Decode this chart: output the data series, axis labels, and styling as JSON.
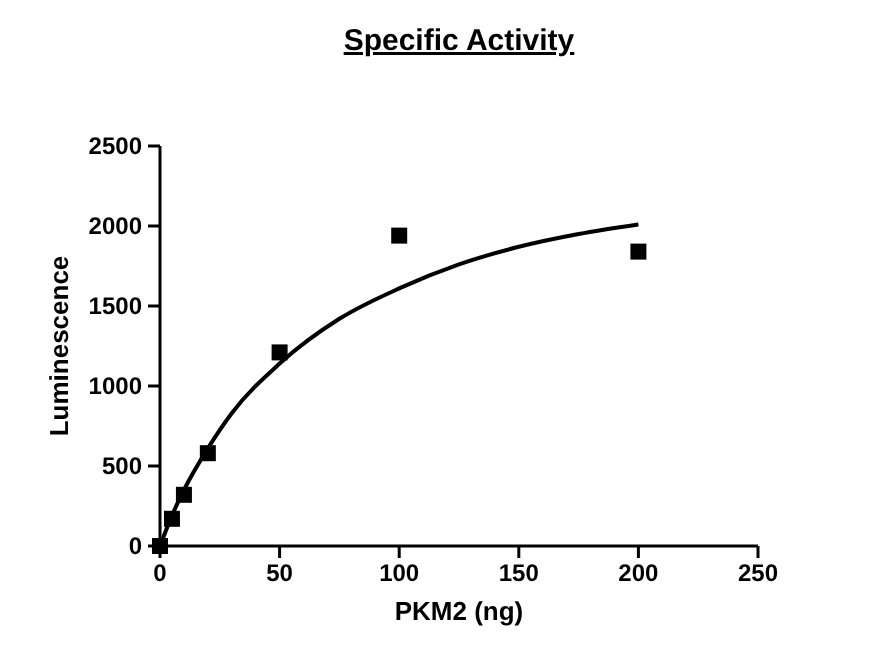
{
  "chart_data": {
    "type": "scatter",
    "title": "Specific Activity",
    "xlabel": "PKM2 (ng)",
    "ylabel": "Luminescence",
    "xlim": [
      0,
      250
    ],
    "ylim": [
      0,
      2500
    ],
    "xticks": [
      0,
      50,
      100,
      150,
      200,
      250
    ],
    "yticks": [
      0,
      500,
      1000,
      1500,
      2000,
      2500
    ],
    "grid": false,
    "marker": "square",
    "series": [
      {
        "color": "#000000",
        "x": [
          0,
          5,
          10,
          20,
          50,
          100,
          200
        ],
        "values": [
          0,
          170,
          320,
          580,
          1210,
          1940,
          1840
        ]
      },
      {
        "type": "line",
        "color": "#000000",
        "marker": "none",
        "line_style": "solid",
        "x": [
          0,
          5,
          10,
          20,
          30,
          50,
          75,
          100,
          125,
          150,
          175,
          200
        ],
        "values": [
          0,
          190,
          350,
          610,
          830,
          1140,
          1420,
          1610,
          1760,
          1870,
          1950,
          2010
        ]
      }
    ]
  }
}
